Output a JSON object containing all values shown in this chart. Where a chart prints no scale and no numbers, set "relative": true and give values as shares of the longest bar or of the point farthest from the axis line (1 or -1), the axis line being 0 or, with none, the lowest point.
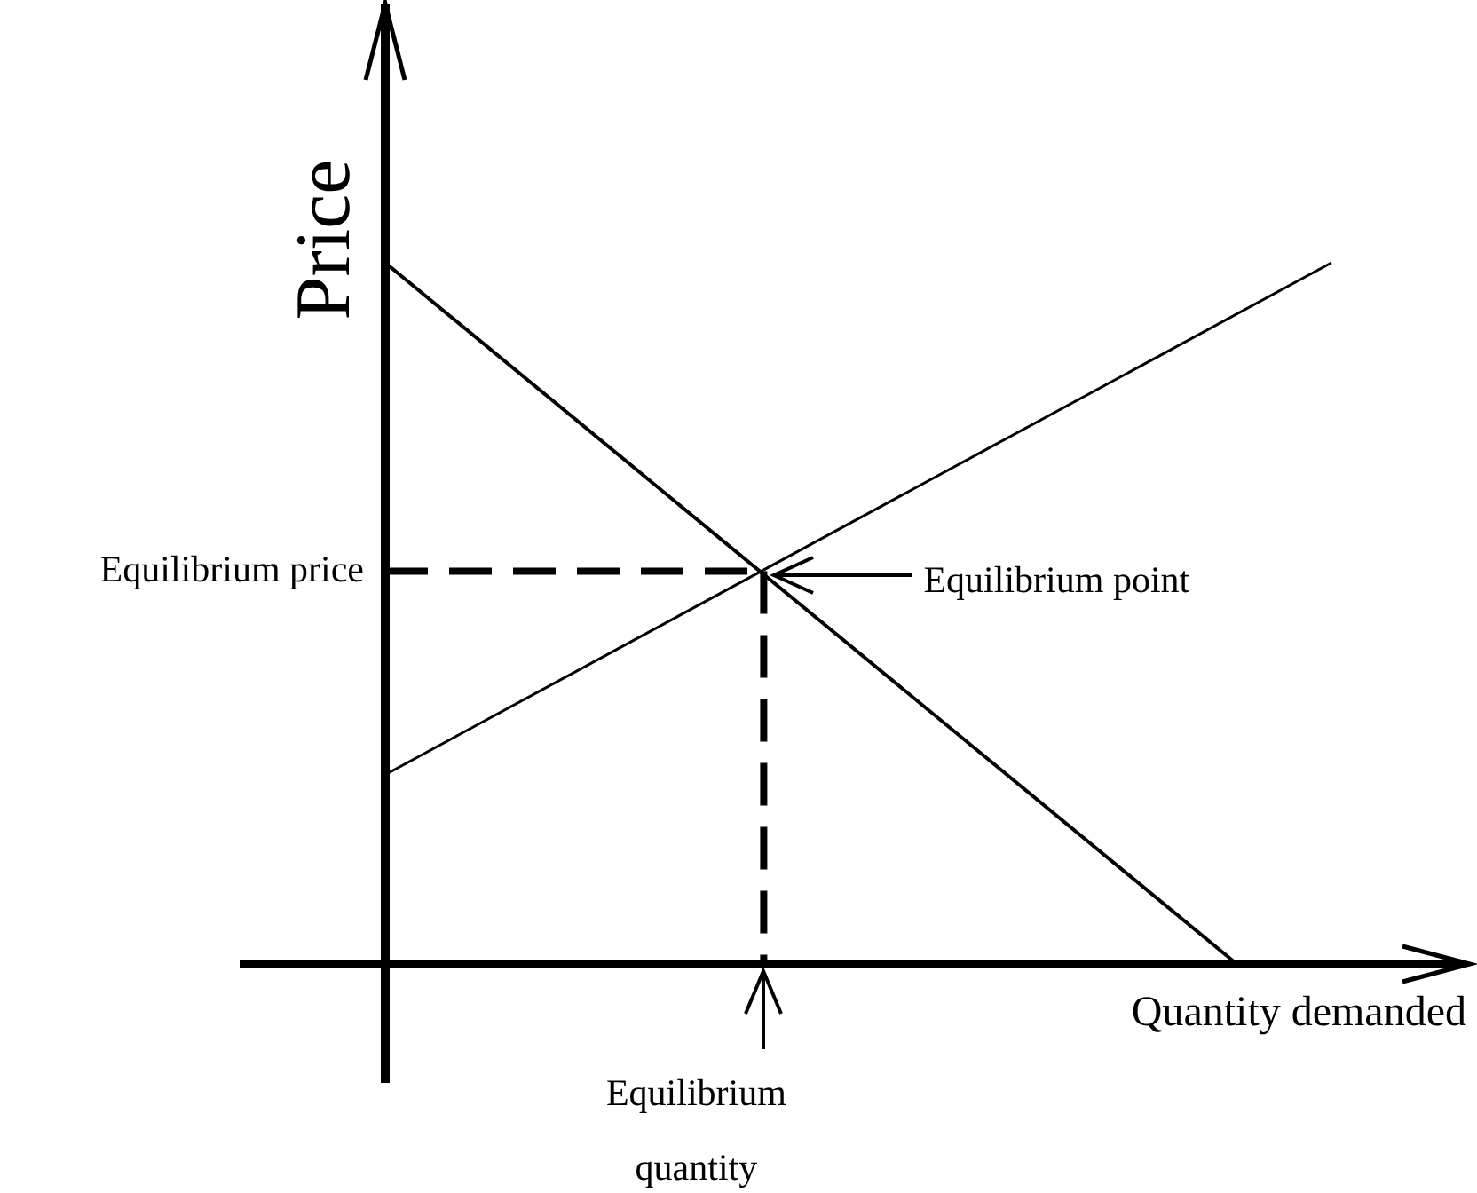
{
  "chart_data": {
    "type": "line",
    "relative": true,
    "xlabel": "Quantity demanded",
    "ylabel": "Price",
    "categories": [
      null,
      null,
      null,
      null,
      null,
      null,
      null,
      null,
      null,
      null,
      null,
      null,
      null,
      null,
      null,
      null,
      null,
      null,
      null,
      null,
      null
    ],
    "series": [
      {
        "values": [
          1,
          null,
          null,
          null,
          null,
          null,
          null,
          null,
          null,
          null,
          null,
          null,
          null,
          null,
          null,
          null,
          null,
          null,
          0,
          null,
          null
        ],
        "color": "#000000",
        "line_style": "solid"
      },
      {
        "values": [
          0.27,
          null,
          null,
          null,
          null,
          null,
          null,
          null,
          null,
          null,
          null,
          null,
          null,
          null,
          null,
          null,
          null,
          null,
          null,
          null,
          1
        ],
        "color": "#000000",
        "line_style": "solid"
      },
      {
        "values": [
          0.56,
          null,
          null,
          null,
          null,
          null,
          null,
          null,
          0.56,
          null,
          null,
          null,
          null,
          null,
          null,
          null,
          null,
          null,
          null,
          null,
          null
        ],
        "color": "#000000",
        "line_style": "dashed"
      }
    ],
    "annotations": [
      "Equilibrium price",
      "Equilibrium point",
      "Equilibrium quantity"
    ]
  }
}
